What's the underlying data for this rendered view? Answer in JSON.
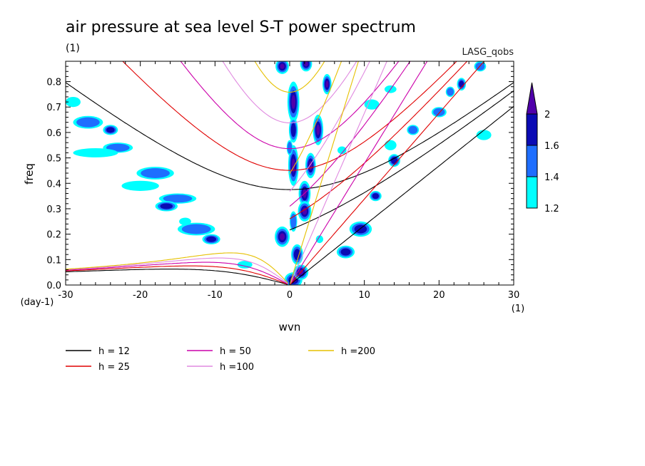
{
  "chart_data": {
    "type": "heatmap",
    "title": "air pressure at sea level S-T power spectrum",
    "subtitle_left": "(1)",
    "subtitle_right": "LASG_qobs",
    "xlabel": "wvn",
    "ylabel": "freq",
    "x_unit": "(1)",
    "y_unit": "(day-1)",
    "xlim": [
      -30,
      30
    ],
    "ylim": [
      0,
      0.88
    ],
    "x_ticks": [
      "-30",
      "-20",
      "-10",
      "0",
      "10",
      "20",
      "30"
    ],
    "y_ticks": [
      "0.0",
      "0.1",
      "0.2",
      "0.3",
      "0.4",
      "0.5",
      "0.6",
      "0.7",
      "0.8"
    ],
    "colorbar": {
      "levels": [
        "1.2",
        "1.4",
        "1.6",
        "2"
      ],
      "colors": [
        "#00ffff",
        "#1e6eff",
        "#0a0ab4",
        "#5000aa"
      ]
    },
    "dispersion_curves": [
      {
        "label": "h = 12",
        "h": 12,
        "color": "#000000"
      },
      {
        "label": "h = 25",
        "h": 25,
        "color": "#e00000"
      },
      {
        "label": "h = 50",
        "h": 50,
        "color": "#cc00aa"
      },
      {
        "label": "h =100",
        "h": 100,
        "color": "#e08ae0"
      },
      {
        "label": "h =200",
        "h": 200,
        "color": "#e6c000"
      }
    ],
    "blobs": [
      {
        "x": 0.5,
        "y": 0.02,
        "rx": 1.2,
        "ry": 0.03,
        "level": 3
      },
      {
        "x": 1.5,
        "y": 0.05,
        "rx": 1.0,
        "ry": 0.03,
        "level": 3
      },
      {
        "x": 1.0,
        "y": 0.12,
        "rx": 0.8,
        "ry": 0.04,
        "level": 2
      },
      {
        "x": -1.0,
        "y": 0.19,
        "rx": 1.0,
        "ry": 0.04,
        "level": 3
      },
      {
        "x": 2.0,
        "y": 0.36,
        "rx": 0.8,
        "ry": 0.05,
        "level": 3
      },
      {
        "x": 2.0,
        "y": 0.29,
        "rx": 0.9,
        "ry": 0.04,
        "level": 3
      },
      {
        "x": 0.5,
        "y": 0.25,
        "rx": 0.5,
        "ry": 0.04,
        "level": 1
      },
      {
        "x": 0.5,
        "y": 0.47,
        "rx": 0.7,
        "ry": 0.08,
        "level": 3
      },
      {
        "x": 2.8,
        "y": 0.47,
        "rx": 0.7,
        "ry": 0.05,
        "level": 3
      },
      {
        "x": 0.5,
        "y": 0.72,
        "rx": 0.8,
        "ry": 0.08,
        "level": 3
      },
      {
        "x": 0.5,
        "y": 0.61,
        "rx": 0.6,
        "ry": 0.05,
        "level": 2
      },
      {
        "x": 3.8,
        "y": 0.61,
        "rx": 0.7,
        "ry": 0.06,
        "level": 3
      },
      {
        "x": 5.0,
        "y": 0.79,
        "rx": 0.6,
        "ry": 0.04,
        "level": 3
      },
      {
        "x": 2.2,
        "y": 0.87,
        "rx": 0.8,
        "ry": 0.03,
        "level": 3
      },
      {
        "x": -1.0,
        "y": 0.86,
        "rx": 0.9,
        "ry": 0.03,
        "level": 3
      },
      {
        "x": 0.0,
        "y": 0.54,
        "rx": 0.4,
        "ry": 0.03,
        "level": 1
      },
      {
        "x": 9.5,
        "y": 0.22,
        "rx": 1.5,
        "ry": 0.03,
        "level": 2
      },
      {
        "x": 7.5,
        "y": 0.13,
        "rx": 1.2,
        "ry": 0.025,
        "level": 2
      },
      {
        "x": 11.5,
        "y": 0.35,
        "rx": 0.8,
        "ry": 0.02,
        "level": 2
      },
      {
        "x": 14.0,
        "y": 0.49,
        "rx": 0.8,
        "ry": 0.025,
        "level": 2
      },
      {
        "x": 13.5,
        "y": 0.55,
        "rx": 0.8,
        "ry": 0.02,
        "level": 0
      },
      {
        "x": 16.5,
        "y": 0.61,
        "rx": 0.8,
        "ry": 0.02,
        "level": 1
      },
      {
        "x": 20.0,
        "y": 0.68,
        "rx": 1.0,
        "ry": 0.02,
        "level": 1
      },
      {
        "x": 21.5,
        "y": 0.76,
        "rx": 0.6,
        "ry": 0.02,
        "level": 1
      },
      {
        "x": 23.0,
        "y": 0.79,
        "rx": 0.6,
        "ry": 0.025,
        "level": 2
      },
      {
        "x": 25.5,
        "y": 0.86,
        "rx": 0.8,
        "ry": 0.02,
        "level": 1
      },
      {
        "x": 11.0,
        "y": 0.71,
        "rx": 1.0,
        "ry": 0.02,
        "level": 0
      },
      {
        "x": 13.5,
        "y": 0.77,
        "rx": 0.8,
        "ry": 0.015,
        "level": 0
      },
      {
        "x": -29.0,
        "y": 0.72,
        "rx": 1.0,
        "ry": 0.02,
        "level": 0
      },
      {
        "x": -27.0,
        "y": 0.64,
        "rx": 2.0,
        "ry": 0.025,
        "level": 1
      },
      {
        "x": -24.0,
        "y": 0.61,
        "rx": 1.0,
        "ry": 0.02,
        "level": 2
      },
      {
        "x": -23.0,
        "y": 0.54,
        "rx": 2.0,
        "ry": 0.02,
        "level": 1
      },
      {
        "x": -18.0,
        "y": 0.44,
        "rx": 2.5,
        "ry": 0.025,
        "level": 1
      },
      {
        "x": -15.0,
        "y": 0.34,
        "rx": 2.5,
        "ry": 0.02,
        "level": 1
      },
      {
        "x": -16.5,
        "y": 0.31,
        "rx": 1.5,
        "ry": 0.02,
        "level": 2
      },
      {
        "x": -12.5,
        "y": 0.22,
        "rx": 2.5,
        "ry": 0.025,
        "level": 1
      },
      {
        "x": -10.5,
        "y": 0.18,
        "rx": 1.2,
        "ry": 0.02,
        "level": 2
      },
      {
        "x": -26.0,
        "y": 0.52,
        "rx": 3.0,
        "ry": 0.018,
        "level": 0
      },
      {
        "x": -20.0,
        "y": 0.39,
        "rx": 2.5,
        "ry": 0.02,
        "level": 0
      },
      {
        "x": -6.0,
        "y": 0.08,
        "rx": 1.0,
        "ry": 0.015,
        "level": 0
      },
      {
        "x": 4.0,
        "y": 0.18,
        "rx": 0.5,
        "ry": 0.015,
        "level": 0
      },
      {
        "x": 7.0,
        "y": 0.53,
        "rx": 0.6,
        "ry": 0.015,
        "level": 0
      },
      {
        "x": -14.0,
        "y": 0.25,
        "rx": 0.8,
        "ry": 0.015,
        "level": 0
      },
      {
        "x": 26.0,
        "y": 0.59,
        "rx": 1.0,
        "ry": 0.02,
        "level": 0
      }
    ]
  }
}
